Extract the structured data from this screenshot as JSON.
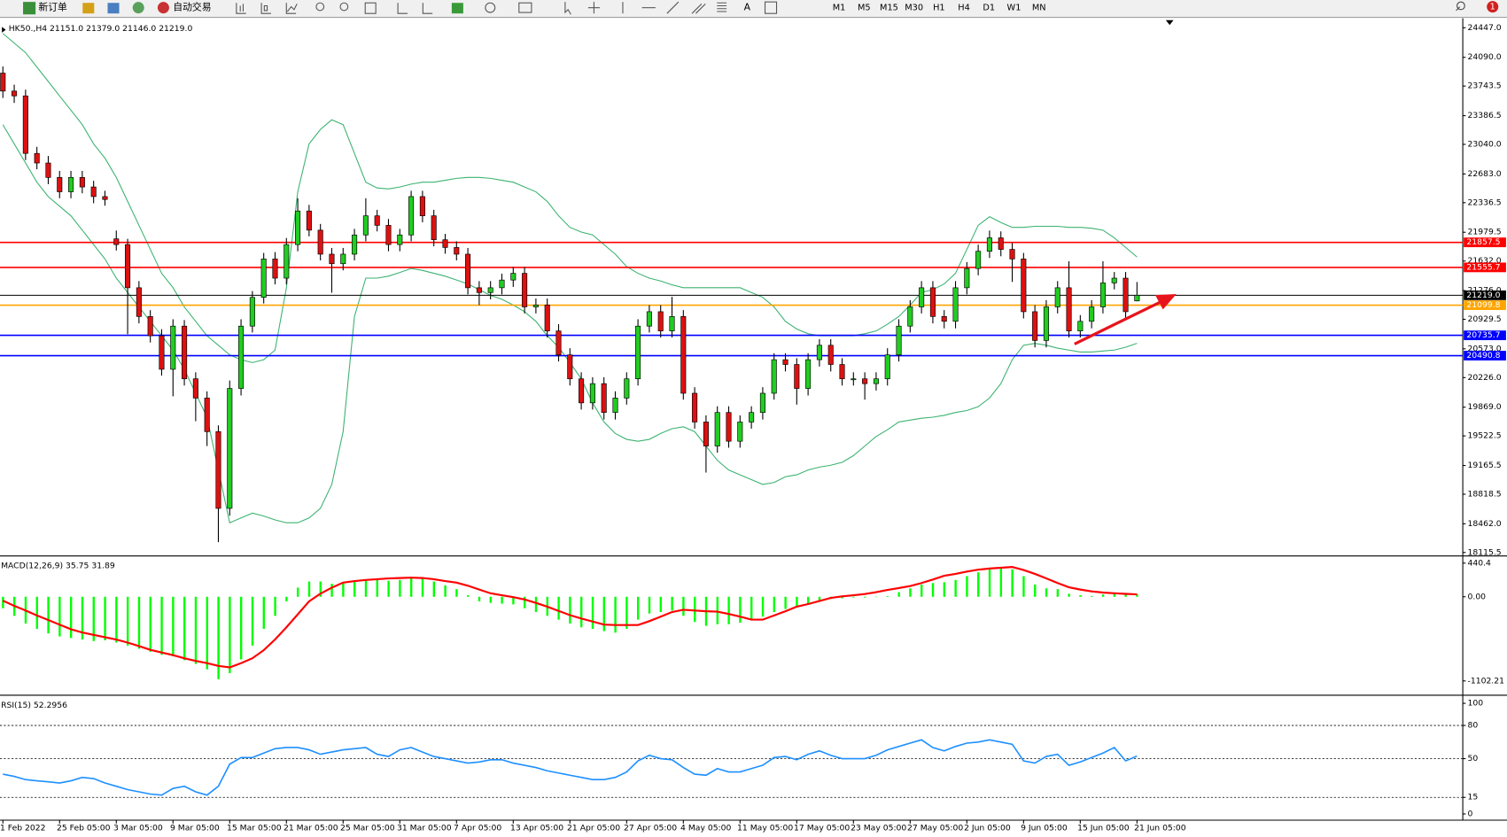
{
  "toolbar": {
    "buttons": [
      "新订单",
      "自动交易"
    ],
    "draw_label": "A",
    "periods": [
      "M1",
      "M5",
      "M15",
      "M30",
      "H1",
      "H4",
      "D1",
      "W1",
      "MN"
    ],
    "badge": "1"
  },
  "chart_data": [
    {
      "type": "candlestick",
      "header": "HK50.,H4 21151.0 21379.0 21146.0 21219.0",
      "categories": [
        "1 Feb 2022",
        null,
        null,
        null,
        null,
        "25 Feb 05:00",
        null,
        null,
        null,
        null,
        "3 Mar 05:00",
        null,
        null,
        null,
        null,
        "9 Mar 05:00",
        null,
        null,
        null,
        null,
        "15 Mar 05:00",
        null,
        null,
        null,
        null,
        "21 Mar 05:00",
        null,
        null,
        null,
        null,
        "25 Mar 05:00",
        null,
        null,
        null,
        null,
        "31 Mar 05:00",
        null,
        null,
        null,
        null,
        "7 Apr 05:00",
        null,
        null,
        null,
        null,
        "13 Apr 05:00",
        null,
        null,
        null,
        null,
        "21 Apr 05:00",
        null,
        null,
        null,
        null,
        "27 Apr 05:00",
        null,
        null,
        null,
        null,
        "4 May 05:00",
        null,
        null,
        null,
        null,
        "11 May 05:00",
        null,
        null,
        null,
        null,
        "17 May 05:00",
        null,
        null,
        null,
        null,
        "23 May 05:00",
        null,
        null,
        null,
        null,
        "27 May 05:00",
        null,
        null,
        null,
        null,
        "2 Jun 05:00",
        null,
        null,
        null,
        null,
        "9 Jun 05:00",
        null,
        null,
        null,
        null,
        "15 Jun 05:00",
        null,
        null,
        null,
        null,
        "21 Jun 05:00"
      ],
      "open": [
        23900,
        23683,
        23625,
        22931,
        22815,
        22641,
        22468,
        22641,
        22526,
        22410,
        21900,
        21831,
        21310,
        20963,
        20731,
        20326,
        20847,
        20211,
        19979,
        19574,
        18648,
        20095,
        20847,
        21194,
        21657,
        21426,
        21831,
        22236,
        22005,
        21715,
        21600,
        21715,
        21947,
        22178,
        22063,
        21831,
        21947,
        22410,
        22178,
        21889,
        21796,
        21715,
        21310,
        21252,
        21310,
        21403,
        21484,
        21079,
        21102,
        20789,
        20500,
        20211,
        19921,
        20153,
        19805,
        19979,
        20211,
        20847,
        21021,
        20789,
        20963,
        20037,
        19690,
        19400,
        19805,
        19458,
        19690,
        19805,
        20037,
        20442,
        20384,
        20095,
        20442,
        20616,
        20384,
        20211,
        20211,
        20153,
        20211,
        20500,
        20847,
        21079,
        21310,
        20963,
        20905,
        21310,
        21542,
        21750,
        21912,
        21773,
        21657,
        21021,
        20674,
        21079,
        21310,
        20789,
        20905,
        21079,
        21368,
        21426,
        21151
      ],
      "high": [
        23980,
        23760,
        23700,
        23010,
        22900,
        22720,
        22720,
        22720,
        22600,
        22480,
        22000,
        21900,
        21390,
        21040,
        20810,
        20930,
        20920,
        20290,
        20060,
        19650,
        20190,
        20930,
        21270,
        21730,
        21740,
        21910,
        22390,
        22310,
        22080,
        21790,
        21790,
        22020,
        22390,
        22250,
        22140,
        22020,
        22480,
        22480,
        22250,
        21960,
        21870,
        21790,
        21390,
        21390,
        21480,
        21560,
        21560,
        21180,
        21180,
        20870,
        20580,
        20290,
        20230,
        20230,
        20060,
        20290,
        20930,
        21100,
        21100,
        21200,
        21040,
        20110,
        19770,
        19880,
        19880,
        19770,
        19880,
        20110,
        20520,
        20520,
        20460,
        20520,
        20690,
        20690,
        20460,
        20290,
        20290,
        20290,
        20580,
        20930,
        21160,
        21390,
        21390,
        21040,
        21390,
        21620,
        21830,
        22000,
        21990,
        21850,
        21730,
        21100,
        21160,
        21390,
        21630,
        20980,
        21160,
        21630,
        21500,
        21500,
        21379
      ],
      "low": [
        23600,
        23540,
        22850,
        22740,
        22560,
        22390,
        22390,
        22450,
        22330,
        22300,
        21760,
        20750,
        20880,
        20650,
        20250,
        20000,
        20130,
        19700,
        19400,
        18240,
        18560,
        20010,
        20770,
        21120,
        21350,
        21350,
        21750,
        21930,
        21640,
        21250,
        21520,
        21640,
        21870,
        21990,
        21750,
        21750,
        21870,
        22100,
        21810,
        21720,
        21640,
        21230,
        21100,
        21170,
        21230,
        21320,
        21000,
        21000,
        20710,
        20420,
        20130,
        19840,
        19840,
        19720,
        19720,
        19900,
        20130,
        20770,
        20710,
        20710,
        19960,
        19610,
        19080,
        19320,
        19380,
        19380,
        19610,
        19720,
        19960,
        20300,
        19900,
        20010,
        20360,
        20300,
        20130,
        20130,
        19960,
        20070,
        20130,
        20420,
        20770,
        21000,
        20880,
        20820,
        20820,
        21230,
        21460,
        21670,
        21690,
        21380,
        20940,
        20590,
        20590,
        21000,
        20710,
        20710,
        20820,
        21000,
        21290,
        20940,
        21146
      ],
      "close": [
        23683,
        23625,
        22931,
        22815,
        22641,
        22468,
        22641,
        22526,
        22410,
        22375,
        21831,
        21310,
        20963,
        20731,
        20326,
        20847,
        20211,
        19979,
        19574,
        18648,
        20095,
        20847,
        21194,
        21657,
        21426,
        21831,
        22236,
        22005,
        21715,
        21600,
        21715,
        21947,
        22178,
        22063,
        21831,
        21947,
        22410,
        22178,
        21889,
        21796,
        21715,
        21310,
        21252,
        21310,
        21403,
        21484,
        21079,
        21102,
        20789,
        20500,
        20211,
        19921,
        20153,
        19805,
        19979,
        20211,
        20847,
        21021,
        20789,
        20963,
        20037,
        19690,
        19400,
        19805,
        19458,
        19690,
        19805,
        20037,
        20442,
        20384,
        20095,
        20442,
        20616,
        20384,
        20211,
        20211,
        20153,
        20211,
        20500,
        20847,
        21079,
        21310,
        20963,
        20905,
        21310,
        21542,
        21750,
        21912,
        21773,
        21657,
        21021,
        20674,
        21079,
        21310,
        20789,
        20905,
        21079,
        21368,
        21426,
        21021,
        21219
      ],
      "up_color": "#22cc22",
      "down_color": "#dd1111",
      "bands": {
        "color": "#3cb371",
        "upper": [
          24378,
          24262,
          24146,
          23972,
          23799,
          23625,
          23452,
          23278,
          23046,
          22873,
          22641,
          22352,
          22063,
          21773,
          21484,
          21310,
          21079,
          20905,
          20731,
          20616,
          20500,
          20442,
          20407,
          20442,
          20558,
          21310,
          22468,
          23046,
          23220,
          23336,
          23278,
          22931,
          22583,
          22514,
          22502,
          22526,
          22560,
          22583,
          22583,
          22607,
          22630,
          22641,
          22641,
          22630,
          22607,
          22583,
          22526,
          22468,
          22352,
          22178,
          22039,
          21982,
          21947,
          21831,
          21715,
          21565,
          21484,
          21426,
          21391,
          21345,
          21310,
          21310,
          21310,
          21310,
          21310,
          21310,
          21252,
          21194,
          21079,
          20905,
          20812,
          20755,
          20731,
          20731,
          20731,
          20731,
          20755,
          20789,
          20870,
          20963,
          21102,
          21252,
          21287,
          21356,
          21484,
          21773,
          22063,
          22167,
          22097,
          22039,
          22039,
          22051,
          22051,
          22051,
          22039,
          22039,
          22028,
          22005,
          21912,
          21796,
          21681
        ],
        "lower": [
          23278,
          23046,
          22815,
          22583,
          22410,
          22294,
          22178,
          22005,
          21831,
          21657,
          21426,
          21252,
          21079,
          20905,
          20731,
          20558,
          20326,
          20037,
          19748,
          19111,
          18474,
          18532,
          18590,
          18555,
          18509,
          18474,
          18474,
          18532,
          18648,
          18937,
          19574,
          20963,
          21426,
          21426,
          21449,
          21495,
          21542,
          21519,
          21484,
          21449,
          21403,
          21356,
          21287,
          21218,
          21171,
          21102,
          21021,
          20905,
          20731,
          20593,
          20407,
          20211,
          19921,
          19690,
          19551,
          19481,
          19458,
          19481,
          19551,
          19609,
          19632,
          19574,
          19400,
          19227,
          19111,
          19053,
          18995,
          18937,
          18960,
          19030,
          19053,
          19111,
          19146,
          19169,
          19204,
          19285,
          19400,
          19516,
          19597,
          19690,
          19713,
          19736,
          19748,
          19771,
          19805,
          19829,
          19875,
          19979,
          20153,
          20442,
          20616,
          20639,
          20616,
          20581,
          20558,
          20535,
          20535,
          20546,
          20558,
          20593,
          20639
        ]
      },
      "levels": [
        {
          "value": 21857.5,
          "color": "#ff0000"
        },
        {
          "value": 21555.7,
          "color": "#ff0000"
        },
        {
          "value": 21219,
          "label": "21219.0",
          "color": "#000000"
        },
        {
          "value": 21099.8,
          "color": "#ffa500"
        },
        {
          "value": 20735.7,
          "color": "#0000ff"
        },
        {
          "value": 20490.8,
          "color": "#0000ff"
        }
      ],
      "ylim": [
        18080,
        24550
      ],
      "yticks": [
        {
          "value": 24447,
          "label": "24447.0"
        },
        {
          "value": 24090,
          "label": "24090.0"
        },
        23743.5,
        23386.5,
        {
          "value": 23040,
          "label": "23040.0"
        },
        {
          "value": 22683,
          "label": "22683.0"
        },
        22336.5,
        21979.5,
        {
          "value": 21632,
          "label": "21632.0"
        },
        {
          "value": 21276,
          "label": "21276.0"
        },
        20929.5,
        {
          "value": 20573,
          "label": "20573.0"
        },
        {
          "value": 20226,
          "label": "20226.0"
        },
        {
          "value": 19869,
          "label": "19869.0"
        },
        19522.5,
        19165.5,
        18818.5,
        {
          "value": 18462,
          "label": "18462.0"
        },
        18115.5
      ]
    },
    {
      "type": "macd",
      "label": "MACD(12,26,9) 35.75 31.89",
      "histogram": [
        -150,
        -250,
        -350,
        -420,
        -480,
        -520,
        -540,
        -560,
        -580,
        -570,
        -600,
        -640,
        -680,
        -720,
        -760,
        -780,
        -830,
        -880,
        -950,
        -1080,
        -1000,
        -820,
        -640,
        -420,
        -250,
        -60,
        120,
        200,
        200,
        170,
        180,
        200,
        230,
        220,
        210,
        220,
        250,
        240,
        200,
        150,
        100,
        20,
        -60,
        -80,
        -90,
        -100,
        -150,
        -200,
        -250,
        -300,
        -350,
        -400,
        -420,
        -450,
        -470,
        -420,
        -300,
        -220,
        -200,
        -180,
        -250,
        -330,
        -380,
        -360,
        -360,
        -340,
        -310,
        -260,
        -200,
        -160,
        -140,
        -100,
        -50,
        -30,
        -20,
        -10,
        -10,
        -5,
        10,
        60,
        110,
        160,
        180,
        190,
        220,
        270,
        320,
        370,
        380,
        360,
        270,
        160,
        110,
        100,
        40,
        20,
        10,
        30,
        40,
        30,
        35.75
      ],
      "signal": [
        -50,
        -120,
        -180,
        -245,
        -305,
        -365,
        -425,
        -468,
        -500,
        -530,
        -560,
        -600,
        -645,
        -695,
        -730,
        -765,
        -805,
        -840,
        -870,
        -905,
        -925,
        -870,
        -805,
        -700,
        -560,
        -400,
        -230,
        -60,
        40,
        120,
        185,
        205,
        220,
        230,
        240,
        245,
        250,
        245,
        230,
        205,
        185,
        145,
        95,
        45,
        20,
        -5,
        -35,
        -80,
        -130,
        -185,
        -240,
        -285,
        -325,
        -365,
        -370,
        -370,
        -370,
        -320,
        -260,
        -200,
        -170,
        -180,
        -190,
        -195,
        -225,
        -260,
        -300,
        -300,
        -245,
        -190,
        -130,
        -95,
        -55,
        -15,
        5,
        20,
        35,
        60,
        90,
        115,
        140,
        180,
        225,
        275,
        300,
        330,
        355,
        370,
        380,
        390,
        350,
        300,
        240,
        180,
        125,
        95,
        70,
        55,
        45,
        38,
        31.89
      ],
      "hist_color": "#00ff00",
      "signal_color": "#ff0000",
      "ylim": [
        -1271,
        516
      ],
      "yticks": [
        440.4,
        {
          "value": 0,
          "label": "0.00"
        },
        -1102.21
      ]
    },
    {
      "type": "rsi",
      "label": "RSI(15) 52.2956",
      "values": [
        36,
        34,
        31,
        30,
        29,
        28,
        30,
        33,
        32,
        28,
        25,
        22,
        20,
        18,
        17,
        23,
        25,
        20,
        17,
        25,
        45,
        51,
        51,
        55,
        59,
        60,
        60,
        58,
        54,
        56,
        58,
        59,
        60,
        54,
        52,
        58,
        60,
        56,
        52,
        50,
        48,
        46,
        47,
        49,
        49,
        46,
        44,
        42,
        39,
        37,
        35,
        33,
        31,
        31,
        33,
        38,
        48,
        53,
        50,
        49,
        42,
        36,
        35,
        41,
        38,
        38,
        41,
        44,
        51,
        52,
        49,
        54,
        57,
        53,
        50,
        50,
        50,
        53,
        58,
        61,
        64,
        67,
        60,
        57,
        61,
        64,
        65,
        67,
        65,
        63,
        48,
        46,
        52,
        54,
        44,
        47,
        51,
        55,
        60,
        48,
        52.2956
      ],
      "color": "#1e90ff",
      "ylim": [
        -5.2,
        106
      ],
      "yticks": [
        100,
        80,
        50,
        15,
        0
      ],
      "dashed_levels": [
        80,
        50,
        15
      ]
    }
  ]
}
